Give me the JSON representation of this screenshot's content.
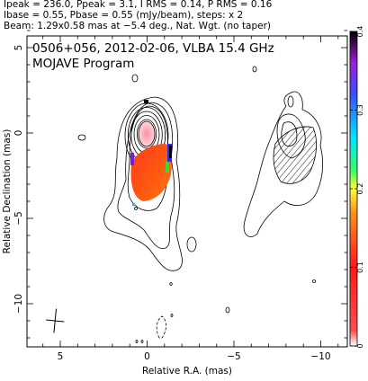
{
  "header": {
    "line1": "Ipeak = 236.0, Ppeak = 3.1, I RMS = 0.14, P RMS = 0.16",
    "line2": "Ibase = 0.55, Pbase = 0.55 (mJy/beam), steps: x 2",
    "line3": "Beam: 1.29x0.58 mas at −5.4 deg., Nat. Wgt. (no taper)"
  },
  "chart_data": {
    "type": "heatmap",
    "title": "0506+056, 2012-02-06, VLBA 15.4 GHz",
    "subtitle": "MOJAVE Program",
    "xlabel": "Relative R.A. (mas)",
    "ylabel": "Relative Declination (mas)",
    "xlim": [
      6,
      -12
    ],
    "ylim": [
      -12.5,
      6
    ],
    "xticks": [
      5,
      0,
      -5,
      -10
    ],
    "yticks": [
      5,
      0,
      -5,
      -10
    ],
    "x_tick_labels": [
      "5",
      "0",
      "−5",
      "−10"
    ],
    "y_tick_labels": [
      "5",
      "0",
      "−5",
      "−10"
    ],
    "colorbar": {
      "range": [
        0,
        0.4
      ],
      "ticks": [
        0,
        0.1,
        0.2,
        0.3,
        0.4
      ],
      "tick_labels": [
        "0",
        "0.1",
        "0.2",
        "0.3",
        "0.4"
      ],
      "colors": [
        "#ffffff",
        "#ff2020",
        "#ff8c1a",
        "#ffff33",
        "#33ff66",
        "#00e5ff",
        "#3a4dff",
        "#9b1fd6",
        "#000000"
      ]
    },
    "core": {
      "x": 0,
      "y": 0
    },
    "contour_levels_mJy": [
      0.55,
      1.1,
      2.2,
      4.4,
      8.8,
      17.6,
      35.2,
      70.4,
      140.8
    ],
    "polarization_region": {
      "x_center": -0.2,
      "y_center": -1.8,
      "x_half_width": 1.6,
      "y_half_height": 1.4
    },
    "beam": {
      "major_mas": 1.29,
      "minor_mas": 0.58,
      "pa_deg": -5.4,
      "x": 5.3,
      "y": -11.0
    },
    "panel_offset_mas": -8.5
  }
}
